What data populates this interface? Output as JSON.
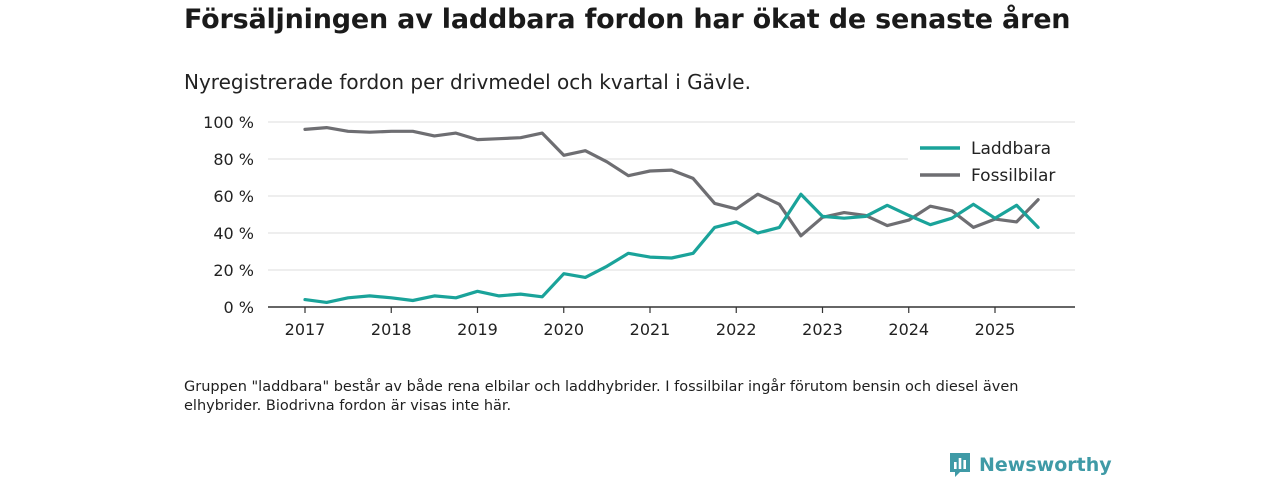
{
  "title": "Försäljningen av laddbara fordon har ökat de senaste åren",
  "subtitle": "Nyregistrerade fordon per drivmedel och kvartal i Gävle.",
  "note": "Gruppen \"laddbara\" består av både rena elbilar och laddhybrider. I fossilbilar ingår förutom bensin och diesel även elhybrider. Biodrivna fordon är visas inte här.",
  "brand": {
    "name": "Newsworthy",
    "color": "#3f9aa6"
  },
  "chart_data": {
    "type": "line",
    "title": "Nyregistrerade fordon per drivmedel och kvartal i Gävle.",
    "xlabel": "",
    "ylabel": "",
    "ylim": [
      0,
      100
    ],
    "y_ticks": [
      0,
      20,
      40,
      60,
      80,
      100
    ],
    "y_tick_labels": [
      "0 %",
      "20 %",
      "40 %",
      "60 %",
      "80 %",
      "100 %"
    ],
    "x_tick_labels": [
      "2017",
      "2018",
      "2019",
      "2020",
      "2021",
      "2022",
      "2023",
      "2024",
      "2025"
    ],
    "x_tick_years": [
      2017,
      2018,
      2019,
      2020,
      2021,
      2022,
      2023,
      2024,
      2025
    ],
    "x": [
      2017.0,
      2017.25,
      2017.5,
      2017.75,
      2018.0,
      2018.25,
      2018.5,
      2018.75,
      2019.0,
      2019.25,
      2019.5,
      2019.75,
      2020.0,
      2020.25,
      2020.5,
      2020.75,
      2021.0,
      2021.25,
      2021.5,
      2021.75,
      2022.0,
      2022.25,
      2022.5,
      2022.75,
      2023.0,
      2023.25,
      2023.5,
      2023.75,
      2024.0,
      2024.25,
      2024.5,
      2024.75,
      2025.0,
      2025.25,
      2025.5
    ],
    "series": [
      {
        "name": "Laddbara",
        "color": "#1aa39a",
        "values": [
          4,
          2.5,
          5,
          6,
          5,
          3.5,
          6,
          5,
          8.5,
          6,
          7,
          5.5,
          18,
          16,
          22,
          29,
          27,
          26.5,
          29,
          43,
          46,
          40,
          43,
          61,
          49,
          48,
          49,
          55,
          49.5,
          44.5,
          48,
          55.5,
          48,
          55,
          43
        ]
      },
      {
        "name": "Fossilbilar",
        "color": "#6e6e72",
        "values": [
          96,
          97,
          95,
          94.5,
          95,
          95,
          92.5,
          94,
          90.5,
          91,
          91.5,
          94,
          82,
          84.5,
          78.5,
          71,
          73.5,
          74,
          69.5,
          56,
          53,
          61,
          55.5,
          38.5,
          48.5,
          51,
          49.5,
          44,
          47,
          54.5,
          52,
          43,
          47.5,
          46,
          58
        ]
      }
    ],
    "legend_position": "top-right",
    "grid": true
  }
}
